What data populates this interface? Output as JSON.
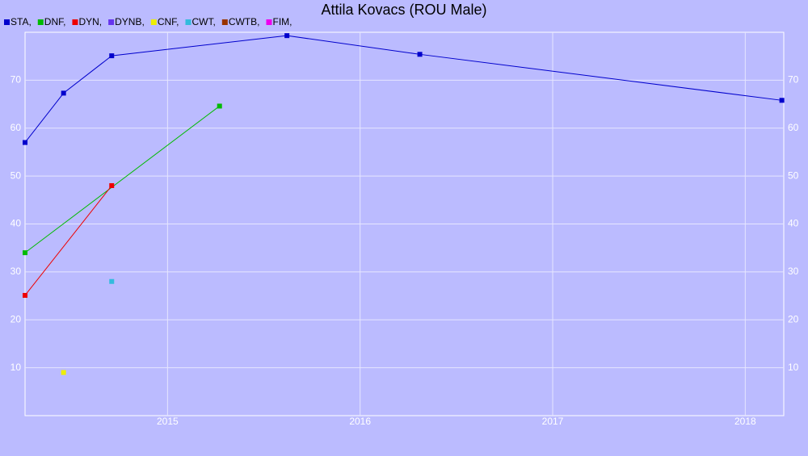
{
  "chart_data": {
    "type": "line",
    "title": "Attila Kovacs (ROU Male)",
    "xlim": [
      2014.26,
      2018.2
    ],
    "xticks": [
      2015,
      2016,
      2017,
      2018
    ],
    "ylim": [
      0,
      80
    ],
    "yticks": [
      10,
      20,
      30,
      40,
      50,
      60,
      70
    ],
    "grid": true,
    "series": [
      {
        "name": "STA,",
        "color": "#0000cc",
        "x": [
          2014.26,
          2014.46,
          2014.71,
          2015.62,
          2016.31,
          2018.19
        ],
        "values": [
          57,
          67.3,
          75.1,
          79.3,
          75.4,
          65.8
        ]
      },
      {
        "name": "DNF,",
        "color": "#00bb00",
        "x": [
          2014.26,
          2015.27
        ],
        "values": [
          34,
          64.6
        ]
      },
      {
        "name": "DYN,",
        "color": "#ee0000",
        "x": [
          2014.26,
          2014.71
        ],
        "values": [
          25.1,
          48
        ]
      },
      {
        "name": "DYNB,",
        "color": "#6633ee",
        "x": [],
        "values": []
      },
      {
        "name": "CNF,",
        "color": "#eeee00",
        "x": [
          2014.46
        ],
        "values": [
          9
        ]
      },
      {
        "name": "CWT,",
        "color": "#33bbdd",
        "x": [
          2014.71
        ],
        "values": [
          28
        ]
      },
      {
        "name": "CWTB,",
        "color": "#993300",
        "x": [],
        "values": []
      },
      {
        "name": "FIM,",
        "color": "#ee00ee",
        "x": [],
        "values": []
      }
    ]
  }
}
